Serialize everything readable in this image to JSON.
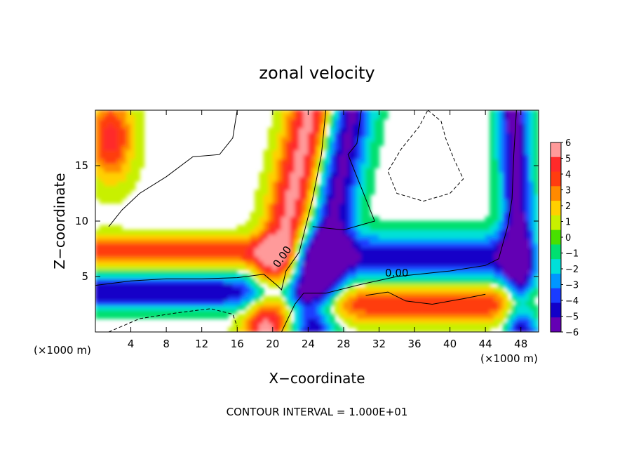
{
  "chart_data": {
    "type": "heatmap",
    "title": "zonal velocity",
    "xlabel": "X−coordinate",
    "ylabel": "Z−coordinate",
    "x_unit_left": "(×1000 m)",
    "x_unit_right": "(×1000 m)",
    "xlim": [
      0,
      50
    ],
    "ylim": [
      0,
      20
    ],
    "x_ticks": [
      4,
      8,
      12,
      16,
      20,
      24,
      28,
      32,
      36,
      40,
      44,
      48
    ],
    "x_tick_labels": [
      "4",
      "8",
      "12",
      "16",
      "20",
      "24",
      "28",
      "32",
      "36",
      "40",
      "44",
      "48"
    ],
    "y_ticks": [
      5,
      10,
      15
    ],
    "y_tick_labels": [
      "5",
      "10",
      "15"
    ],
    "colorbar": {
      "ticks": [
        6,
        5,
        4,
        3,
        2,
        1,
        0,
        -1,
        -2,
        -3,
        -4,
        -5,
        -6
      ],
      "tick_labels": [
        "6",
        "5",
        "4",
        "3",
        "2",
        "1",
        "0",
        "−1",
        "−2",
        "−3",
        "−4",
        "−5",
        "−6"
      ],
      "colors": [
        "#ff9a9a",
        "#ff2a2a",
        "#ff3c10",
        "#ff8a00",
        "#ffd000",
        "#c8f000",
        "#48e000",
        "#00e070",
        "#00e0d8",
        "#0096ff",
        "#1a3cff",
        "#1200c8",
        "#6400b4"
      ]
    },
    "contour_labels": [
      {
        "text": "0.00",
        "x": 21.4,
        "z": 6.6
      },
      {
        "text": "0.00",
        "x": 34.0,
        "z": 5.0
      }
    ],
    "annotation": "CONTOUR INTERVAL = 1.000E+01",
    "features": [
      {
        "kind": "positive jet band",
        "description": "tilted warm band from (20,0) up to (24.5,20), values up to 6"
      },
      {
        "kind": "negative jet band",
        "description": "tilted cool band from (22,0) up to (28,20), values down to -6"
      },
      {
        "kind": "negative jet band",
        "description": "near x 45-50 across full height, values down to -6"
      },
      {
        "kind": "low-level shear layer",
        "description": "positive (red) near z 6-8 on left, negative (blue) below near z 2-5"
      }
    ]
  }
}
